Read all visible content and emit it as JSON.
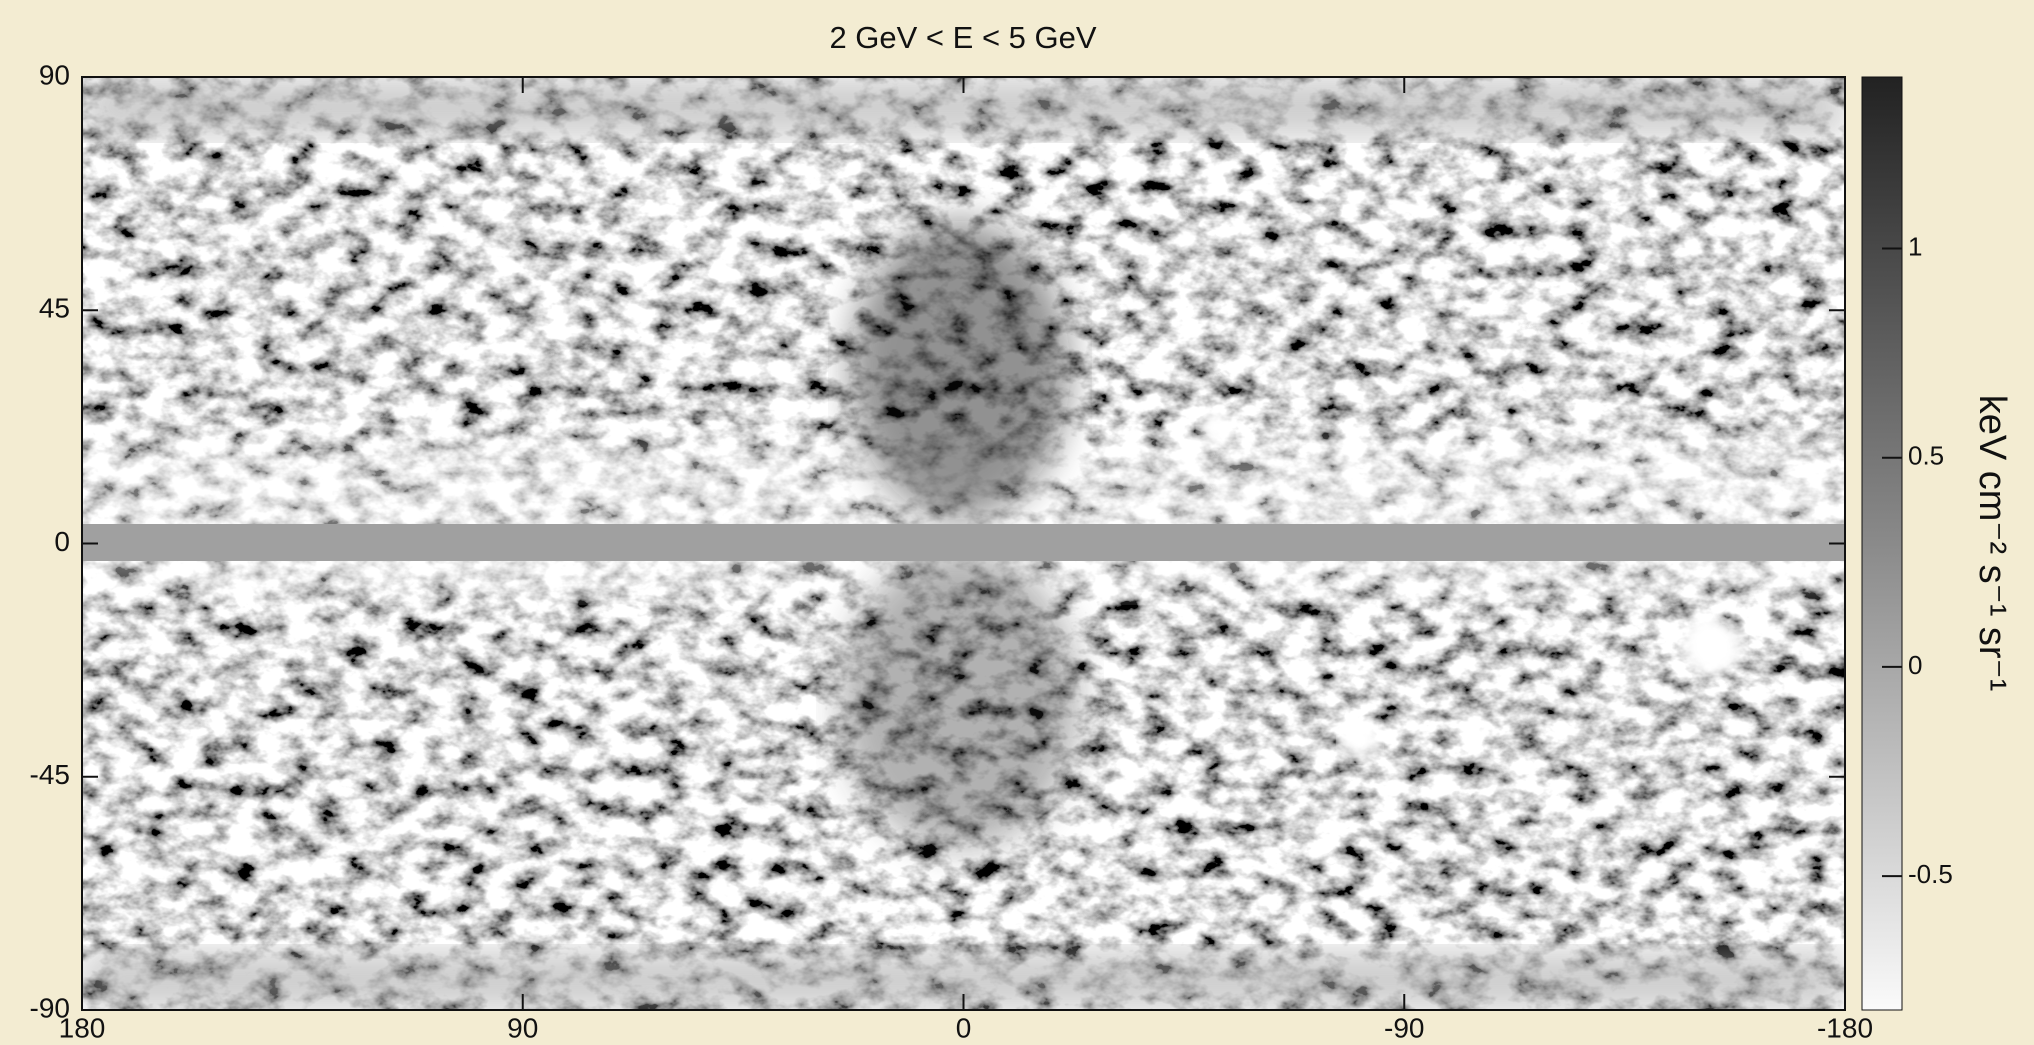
{
  "chart_data": {
    "type": "skymap",
    "title": "2 GeV < E < 5 GeV",
    "xlim": [
      180,
      -180
    ],
    "xticks": [
      180,
      90,
      0,
      -90,
      -180
    ],
    "ylim": [
      -90,
      90
    ],
    "yticks": [
      -90,
      -45,
      0,
      45,
      90
    ],
    "grid": false,
    "colorbar": {
      "label": "keV cm⁻² s⁻¹ sr⁻¹",
      "lim": [
        -0.82,
        1.41
      ],
      "ticks": [
        -0.5,
        0.0,
        0.5,
        1.0
      ]
    }
  }
}
